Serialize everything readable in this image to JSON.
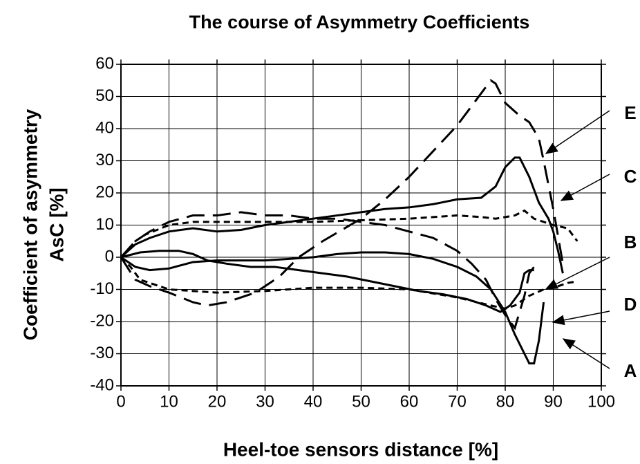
{
  "chart_data": {
    "type": "line",
    "title": "The course of Asymmetry Coefficients",
    "x_label": "Heel-toe sensors distance [%]",
    "y_label": [
      "Coefficient of asymmetry",
      "AsC [%]"
    ],
    "xlim": [
      0,
      100
    ],
    "xticks": [
      0,
      10,
      20,
      30,
      40,
      50,
      60,
      70,
      80,
      90,
      100
    ],
    "ylim": [
      -40,
      60
    ],
    "yticks": [
      -40,
      -30,
      -20,
      -10,
      0,
      10,
      20,
      30,
      40,
      50,
      60
    ],
    "grid": true,
    "series": [
      {
        "name": "A",
        "color": "#000000",
        "style": "solid",
        "x": [
          0,
          3,
          6,
          10,
          15,
          20,
          25,
          30,
          35,
          40,
          45,
          50,
          55,
          60,
          65,
          70,
          74,
          77,
          80,
          82,
          84,
          85,
          86,
          87,
          88
        ],
        "values": [
          0,
          -3,
          -4,
          -3.5,
          -1.5,
          -1,
          -1,
          -1,
          -0.5,
          0,
          1,
          1.5,
          1.5,
          1,
          -0.5,
          -3,
          -6,
          -10,
          -17,
          -24,
          -30,
          -33,
          -33,
          -26,
          -14
        ]
      },
      {
        "name": "B",
        "color": "#000000",
        "style": "solid",
        "x": [
          0,
          4,
          8,
          12,
          15,
          18,
          22,
          27,
          32,
          37,
          42,
          47,
          52,
          57,
          62,
          67,
          72,
          76,
          79,
          81,
          83,
          84,
          85,
          86
        ],
        "values": [
          0,
          1.5,
          2,
          2,
          1,
          -1,
          -2,
          -3,
          -3,
          -4,
          -5,
          -6,
          -7.5,
          -9,
          -10.5,
          -11.5,
          -13,
          -15,
          -17,
          -15,
          -11,
          -5,
          -4,
          -4
        ]
      },
      {
        "name": "C",
        "color": "#000000",
        "style": "solid",
        "x": [
          0,
          3,
          6,
          10,
          15,
          20,
          25,
          30,
          35,
          40,
          45,
          50,
          55,
          60,
          65,
          70,
          75,
          78,
          80,
          82,
          83,
          85,
          87,
          89,
          90,
          91,
          92
        ],
        "values": [
          0,
          4,
          6,
          8,
          9,
          8,
          8.5,
          10,
          11,
          12,
          13,
          14,
          15,
          15.5,
          16.5,
          18,
          18.5,
          22,
          28,
          31,
          31,
          25,
          17,
          12,
          8,
          2,
          -5
        ]
      },
      {
        "name": "D",
        "color": "#000000",
        "style": "long-dash",
        "x": [
          0,
          3,
          6,
          10,
          15,
          20,
          25,
          30,
          35,
          40,
          45,
          50,
          55,
          60,
          65,
          70,
          73,
          76,
          78,
          80,
          82,
          84,
          85,
          86
        ],
        "values": [
          0,
          5,
          8,
          11,
          13,
          13,
          14,
          13,
          13,
          12,
          12,
          11,
          10,
          8,
          6,
          2,
          -2,
          -7,
          -13,
          -18,
          -22,
          -12,
          -5,
          -3
        ]
      },
      {
        "name": "E",
        "color": "#000000",
        "style": "long-dash",
        "x": [
          0,
          3,
          6,
          10,
          15,
          18,
          22,
          28,
          33,
          37,
          42,
          50,
          55,
          60,
          65,
          70,
          75,
          77,
          78,
          80,
          83,
          85,
          87,
          88,
          90,
          92
        ],
        "values": [
          0,
          -7,
          -9,
          -11,
          -14,
          -15,
          -14,
          -11,
          -6,
          0,
          5,
          12,
          18,
          25,
          33,
          41,
          51,
          55,
          54,
          48,
          44,
          42,
          37,
          30,
          15,
          -2
        ]
      },
      {
        "color": "#000000",
        "style": "short-dash",
        "x": [
          0,
          3,
          5,
          10,
          15,
          20,
          30,
          40,
          50,
          60,
          70,
          75,
          78,
          82,
          84,
          86,
          88,
          90,
          93,
          95
        ],
        "values": [
          0,
          5,
          7,
          10,
          11,
          11,
          11,
          11,
          11.5,
          12,
          13,
          12.5,
          12,
          13,
          14.5,
          12,
          11,
          10,
          9,
          5
        ]
      },
      {
        "color": "#000000",
        "style": "short-dash",
        "x": [
          0,
          2,
          4,
          10,
          20,
          30,
          40,
          50,
          60,
          70,
          77,
          80,
          82,
          85,
          88,
          90,
          93,
          95
        ],
        "values": [
          0,
          -3,
          -7,
          -10,
          -11,
          -10.5,
          -9.5,
          -9.5,
          -10,
          -12.5,
          -15,
          -16,
          -15,
          -12,
          -10,
          -9.5,
          -8,
          -7.5
        ]
      }
    ]
  }
}
